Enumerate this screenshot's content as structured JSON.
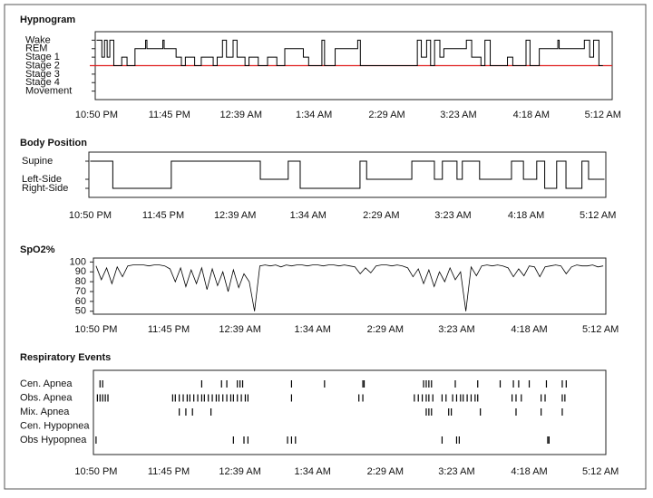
{
  "chart_data": [
    {
      "type": "step",
      "title": "Hypnogram",
      "color": "#000000",
      "xlim": [
        -1,
        389
      ],
      "xticks": [
        {
          "value": 0,
          "label": "10:50 PM"
        },
        {
          "value": 55,
          "label": "11:45 PM"
        },
        {
          "value": 109,
          "label": "12:39 AM"
        },
        {
          "value": 164,
          "label": "1:34 AM"
        },
        {
          "value": 219,
          "label": "2:29 AM"
        },
        {
          "value": 273,
          "label": "3:23 AM"
        },
        {
          "value": 328,
          "label": "4:18 AM"
        },
        {
          "value": 382,
          "label": "5:12 AM"
        }
      ],
      "ylim": [
        -1,
        7
      ],
      "yticks": [
        {
          "value": 6,
          "label": "Wake"
        },
        {
          "value": 5,
          "label": "REM"
        },
        {
          "value": 4,
          "label": "Stage 1"
        },
        {
          "value": 3,
          "label": "Stage 2"
        },
        {
          "value": 2,
          "label": "Stage 3"
        },
        {
          "value": 1,
          "label": "Stage 4"
        },
        {
          "value": 0,
          "label": "Movement"
        }
      ],
      "reference_line": 3,
      "reference_color": "#e02020",
      "x": [
        0,
        2,
        4,
        6,
        8,
        10,
        13,
        19,
        23,
        29,
        37,
        38,
        50,
        51,
        60,
        64,
        67,
        74,
        79,
        88,
        91,
        95,
        98,
        103,
        106,
        112,
        115,
        122,
        129,
        136,
        142,
        156,
        160,
        170,
        172,
        180,
        197,
        199,
        242,
        245,
        249,
        252,
        255,
        259,
        262,
        279,
        283,
        290,
        293,
        297,
        310,
        314,
        324,
        327,
        334,
        348,
        349,
        368,
        372,
        375,
        379,
        382
      ],
      "values": [
        6,
        6,
        4,
        6,
        4,
        6,
        3,
        4,
        3,
        5,
        6,
        5,
        6,
        5,
        4,
        3,
        4,
        3,
        4,
        3,
        4,
        6,
        4,
        6,
        4,
        3,
        4,
        3,
        4,
        3,
        5,
        4,
        3,
        6,
        3,
        5,
        6,
        3,
        6,
        4,
        6,
        3,
        6,
        4,
        5,
        6,
        4,
        3,
        6,
        3,
        4,
        3,
        6,
        3,
        5,
        6,
        5,
        6,
        4,
        6,
        3,
        3
      ]
    },
    {
      "type": "step",
      "title": "Body Position",
      "color": "#000000",
      "xlim": [
        -1,
        388
      ],
      "xticks": [
        {
          "value": 0,
          "label": "10:50 PM"
        },
        {
          "value": 55,
          "label": "11:45 PM"
        },
        {
          "value": 109,
          "label": "12:39 AM"
        },
        {
          "value": 164,
          "label": "1:34 AM"
        },
        {
          "value": 219,
          "label": "2:29 AM"
        },
        {
          "value": 273,
          "label": "3:23 AM"
        },
        {
          "value": 328,
          "label": "4:18 AM"
        },
        {
          "value": 382,
          "label": "5:12 AM"
        }
      ],
      "ylim": [
        -1,
        4
      ],
      "yticks": [
        {
          "value": 3,
          "label": "Supine"
        },
        {
          "value": 1,
          "label": "Left-Side"
        },
        {
          "value": 0,
          "label": "Right-Side"
        }
      ],
      "x": [
        0,
        17,
        61,
        128,
        149,
        158,
        203,
        208,
        242,
        259,
        265,
        276,
        280,
        293,
        317,
        326,
        336,
        342,
        351,
        358,
        370,
        375,
        387
      ],
      "values": [
        3,
        0,
        3,
        1,
        3,
        0,
        3,
        1,
        3,
        1,
        3,
        1,
        3,
        1,
        3,
        1,
        3,
        0,
        3,
        0,
        3,
        1,
        1
      ]
    },
    {
      "type": "line",
      "title": "SpO2%",
      "color": "#000000",
      "xlim": [
        -2,
        386
      ],
      "xticks": [
        {
          "value": 0,
          "label": "10:50 PM"
        },
        {
          "value": 55,
          "label": "11:45 PM"
        },
        {
          "value": 109,
          "label": "12:39 AM"
        },
        {
          "value": 164,
          "label": "1:34 AM"
        },
        {
          "value": 219,
          "label": "2:29 AM"
        },
        {
          "value": 273,
          "label": "3:23 AM"
        },
        {
          "value": 328,
          "label": "4:18 AM"
        },
        {
          "value": 382,
          "label": "5:12 AM"
        }
      ],
      "ylim": [
        47,
        104
      ],
      "yticks": [
        50,
        60,
        70,
        80,
        90,
        100
      ],
      "x": [
        0,
        4,
        8,
        12,
        16,
        20,
        24,
        28,
        32,
        36,
        40,
        44,
        48,
        52,
        56,
        60,
        64,
        68,
        72,
        76,
        80,
        84,
        88,
        92,
        96,
        100,
        104,
        108,
        112,
        116,
        120,
        124,
        128,
        132,
        136,
        140,
        144,
        148,
        152,
        156,
        160,
        164,
        168,
        172,
        176,
        180,
        184,
        188,
        192,
        196,
        200,
        204,
        208,
        212,
        216,
        220,
        224,
        228,
        232,
        236,
        240,
        244,
        248,
        252,
        256,
        260,
        264,
        268,
        272,
        276,
        280,
        284,
        288,
        292,
        296,
        300,
        304,
        308,
        312,
        316,
        320,
        324,
        328,
        332,
        336,
        340,
        344,
        348,
        352,
        356,
        360,
        364,
        368,
        372,
        376,
        380,
        384
      ],
      "values": [
        96,
        82,
        94,
        78,
        95,
        85,
        96,
        97,
        97,
        97,
        96,
        97,
        97,
        96,
        93,
        80,
        94,
        75,
        92,
        78,
        94,
        72,
        93,
        76,
        90,
        70,
        92,
        74,
        88,
        80,
        50,
        96,
        97,
        96,
        97,
        95,
        97,
        96,
        97,
        97,
        96,
        97,
        97,
        96,
        97,
        97,
        96,
        97,
        96,
        95,
        88,
        94,
        89,
        96,
        97,
        97,
        96,
        97,
        96,
        94,
        85,
        93,
        78,
        92,
        75,
        90,
        80,
        94,
        82,
        90,
        50,
        95,
        86,
        96,
        97,
        96,
        97,
        96,
        94,
        85,
        93,
        86,
        96,
        95,
        85,
        95,
        96,
        97,
        96,
        88,
        95,
        97,
        96,
        96,
        97,
        95,
        96
      ]
    },
    {
      "type": "event",
      "title": "Respiratory Events",
      "color": "#000000",
      "xlim": [
        -2,
        386
      ],
      "xticks": [
        {
          "value": 0,
          "label": "10:50 PM"
        },
        {
          "value": 55,
          "label": "11:45 PM"
        },
        {
          "value": 109,
          "label": "12:39 AM"
        },
        {
          "value": 164,
          "label": "1:34 AM"
        },
        {
          "value": 219,
          "label": "2:29 AM"
        },
        {
          "value": 273,
          "label": "3:23 AM"
        },
        {
          "value": 328,
          "label": "4:18 AM"
        },
        {
          "value": 382,
          "label": "5:12 AM"
        }
      ],
      "series": [
        {
          "name": "Cen. Apnea",
          "values": [
            3,
            5,
            80,
            95,
            99,
            107,
            109,
            111,
            148,
            173,
            202,
            203,
            248,
            250,
            252,
            254,
            272,
            289,
            306,
            316,
            320,
            328,
            341,
            353,
            356
          ]
        },
        {
          "name": "Obs. Apnea",
          "values": [
            1,
            3,
            5,
            7,
            9,
            58,
            60,
            63,
            66,
            69,
            71,
            74,
            77,
            80,
            82,
            85,
            88,
            91,
            93,
            96,
            99,
            102,
            104,
            107,
            110,
            113,
            115,
            148,
            199,
            202,
            241,
            244,
            247,
            250,
            252,
            255,
            262,
            265,
            270,
            273,
            276,
            278,
            281,
            284,
            287,
            289,
            315,
            318,
            322,
            337,
            340,
            353,
            355
          ]
        },
        {
          "name": "Mix. Apnea",
          "values": [
            63,
            68,
            73,
            87,
            250,
            252,
            254,
            267,
            269,
            291,
            318,
            337,
            353
          ]
        },
        {
          "name": "Cen. Hypopnea",
          "values": []
        },
        {
          "name": "Obs Hypopnea",
          "values": [
            0,
            104,
            112,
            115,
            145,
            148,
            151,
            262,
            273,
            275,
            342,
            343
          ]
        }
      ]
    }
  ]
}
